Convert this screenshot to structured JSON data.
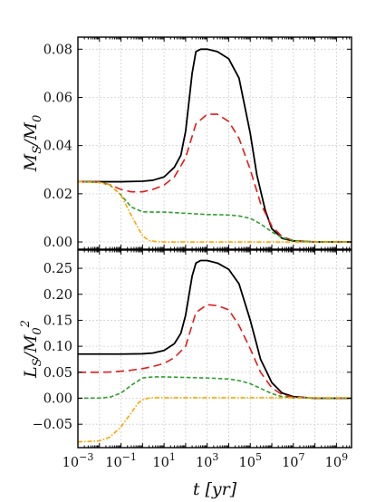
{
  "chart_data": [
    {
      "type": "line",
      "panel": "top",
      "xscale": "log",
      "xlim": [
        0.001,
        5000000000.0
      ],
      "ylim": [
        -0.003,
        0.085
      ],
      "ylabel": "M_S/M_0",
      "yticks": [
        0.0,
        0.02,
        0.04,
        0.06,
        0.08
      ],
      "ytick_labels": [
        "0.00",
        "0.02",
        "0.04",
        "0.06",
        "0.08"
      ],
      "grid": true,
      "series": [
        {
          "color": "#000000",
          "dash": "solid",
          "x": [
            0.001,
            0.01,
            0.1,
            1,
            3,
            10,
            30,
            60,
            100,
            200,
            300,
            500,
            1000,
            3000,
            10000,
            30000,
            100000,
            200000,
            500000,
            1000000,
            3000000,
            10000000,
            100000000,
            5000000000
          ],
          "y": [
            0.025,
            0.025,
            0.025,
            0.0252,
            0.0256,
            0.027,
            0.031,
            0.036,
            0.046,
            0.07,
            0.079,
            0.08,
            0.08,
            0.079,
            0.076,
            0.068,
            0.045,
            0.028,
            0.013,
            0.0055,
            0.0015,
            0.0004,
            0.0,
            0.0
          ]
        },
        {
          "color": "#e41a1c",
          "dash": "dashed",
          "x": [
            0.001,
            0.01,
            0.03,
            0.1,
            0.3,
            1,
            3,
            10,
            30,
            100,
            300,
            1000,
            3000,
            10000,
            30000,
            100000,
            300000,
            1000000,
            3000000,
            10000000,
            100000000,
            5000000000
          ],
          "y": [
            0.025,
            0.0248,
            0.0238,
            0.0218,
            0.0208,
            0.0208,
            0.0218,
            0.0236,
            0.027,
            0.035,
            0.049,
            0.053,
            0.053,
            0.05,
            0.043,
            0.03,
            0.016,
            0.0065,
            0.0022,
            0.0006,
            0.0,
            0.0
          ]
        },
        {
          "color": "#2ca02c",
          "dash": "dashed-short",
          "x": [
            0.001,
            0.01,
            0.03,
            0.1,
            0.3,
            1,
            3,
            10,
            100,
            1000,
            10000,
            30000,
            100000,
            300000,
            1000000,
            3000000,
            10000000,
            100000000,
            5000000000
          ],
          "y": [
            0.025,
            0.0247,
            0.0237,
            0.0195,
            0.0145,
            0.0125,
            0.0124,
            0.0124,
            0.0119,
            0.0114,
            0.0112,
            0.0108,
            0.0098,
            0.0075,
            0.0042,
            0.0018,
            0.0006,
            0.0,
            0.0
          ]
        },
        {
          "color": "#ffa500",
          "dash": "dotdash",
          "x": [
            0.001,
            0.01,
            0.03,
            0.1,
            0.3,
            1,
            2,
            5,
            10,
            100,
            5000000000
          ],
          "y": [
            0.025,
            0.0247,
            0.0237,
            0.0195,
            0.011,
            0.0025,
            0.0006,
            0.0001,
            0.0,
            0.0,
            0.0
          ]
        }
      ]
    },
    {
      "type": "line",
      "panel": "bottom",
      "xscale": "log",
      "xlim": [
        0.001,
        5000000000.0
      ],
      "ylim": [
        -0.095,
        0.285
      ],
      "xlabel": "t [yr]",
      "ylabel": "L_S/M_0^2",
      "xticks": [
        0.001,
        0.1,
        10,
        1000,
        100000,
        10000000,
        1000000000
      ],
      "xtick_base": [
        "10",
        "10",
        "10",
        "10",
        "10",
        "10",
        "10"
      ],
      "xtick_exp": [
        "−3",
        "−1",
        "1",
        "3",
        "5",
        "7",
        "9"
      ],
      "yticks": [
        -0.05,
        0.0,
        0.05,
        0.1,
        0.15,
        0.2,
        0.25
      ],
      "ytick_labels": [
        "−0.05",
        "0.00",
        "0.05",
        "0.10",
        "0.15",
        "0.20",
        "0.25"
      ],
      "grid": true,
      "series": [
        {
          "color": "#000000",
          "dash": "solid",
          "x": [
            0.001,
            0.01,
            0.1,
            1,
            3,
            10,
            30,
            60,
            100,
            200,
            300,
            500,
            1000,
            3000,
            10000,
            30000,
            100000,
            300000,
            1000000,
            3000000,
            10000000,
            100000000,
            5000000000
          ],
          "y": [
            0.085,
            0.085,
            0.085,
            0.0855,
            0.087,
            0.092,
            0.105,
            0.125,
            0.16,
            0.235,
            0.26,
            0.265,
            0.265,
            0.26,
            0.248,
            0.22,
            0.15,
            0.075,
            0.03,
            0.01,
            0.003,
            0.0,
            0.0
          ]
        },
        {
          "color": "#e41a1c",
          "dash": "dashed",
          "x": [
            0.001,
            0.01,
            0.03,
            0.1,
            0.3,
            1,
            3,
            10,
            30,
            100,
            300,
            1000,
            3000,
            10000,
            30000,
            100000,
            300000,
            1000000,
            3000000,
            10000000,
            100000000,
            5000000000
          ],
          "y": [
            0.05,
            0.05,
            0.0505,
            0.052,
            0.054,
            0.057,
            0.061,
            0.067,
            0.078,
            0.1,
            0.165,
            0.18,
            0.178,
            0.17,
            0.14,
            0.095,
            0.05,
            0.02,
            0.007,
            0.002,
            0.0,
            0.0
          ]
        },
        {
          "color": "#2ca02c",
          "dash": "dashed-short",
          "x": [
            0.001,
            0.01,
            0.03,
            0.1,
            0.3,
            1,
            3,
            10,
            100,
            1000,
            10000,
            30000,
            100000,
            300000,
            1000000,
            3000000,
            10000000,
            100000000,
            5000000000
          ],
          "y": [
            0.0,
            0.0005,
            0.002,
            0.01,
            0.025,
            0.039,
            0.041,
            0.041,
            0.04,
            0.039,
            0.037,
            0.034,
            0.028,
            0.019,
            0.009,
            0.003,
            0.0008,
            0.0,
            0.0
          ]
        },
        {
          "color": "#ffa500",
          "dash": "dotdash",
          "x": [
            0.001,
            0.01,
            0.03,
            0.1,
            0.3,
            0.6,
            1,
            2,
            5,
            10,
            100,
            5000000000
          ],
          "y": [
            -0.084,
            -0.082,
            -0.075,
            -0.055,
            -0.028,
            -0.01,
            -0.003,
            0.0005,
            0.001,
            0.001,
            0.001,
            0.001
          ]
        }
      ]
    }
  ]
}
